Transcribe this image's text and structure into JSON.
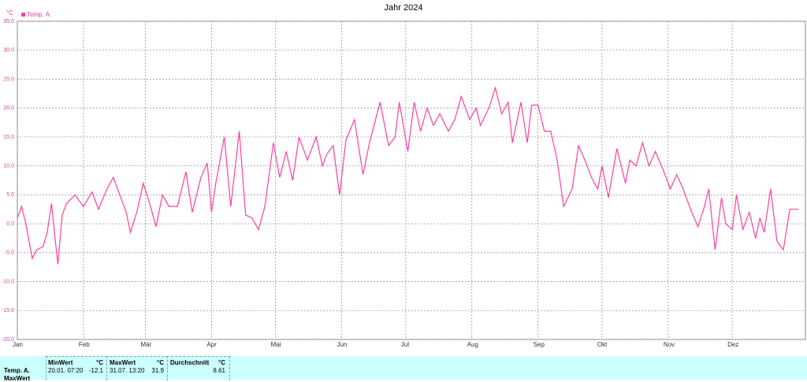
{
  "chart_data": {
    "type": "line",
    "title": "Jahr 2024",
    "y_unit": "°C",
    "x": [
      0,
      2,
      4,
      7,
      9,
      12,
      14,
      16,
      19,
      21,
      23,
      27,
      31,
      35,
      38,
      42,
      45,
      48,
      51,
      53,
      56,
      59,
      62,
      65,
      68,
      71,
      75,
      79,
      82,
      86,
      89,
      91,
      93,
      97,
      100,
      104,
      107,
      110,
      113,
      116,
      120,
      123,
      126,
      129,
      132,
      136,
      140,
      143,
      145,
      148,
      151,
      154,
      158,
      162,
      165,
      170,
      174,
      177,
      179,
      183,
      186,
      189,
      192,
      195,
      198,
      202,
      205,
      208,
      212,
      215,
      217,
      221,
      224,
      227,
      230,
      232,
      236,
      239,
      241,
      244,
      247,
      250,
      253,
      256,
      260,
      263,
      266,
      269,
      272,
      274,
      277,
      281,
      285,
      287,
      290,
      293,
      296,
      299,
      303,
      306,
      309,
      312,
      316,
      319,
      322,
      324,
      327,
      330,
      332,
      335,
      337,
      340,
      343,
      346,
      348,
      350,
      353,
      356,
      359,
      362,
      366
    ],
    "series": [
      {
        "name": "Temp. A.",
        "color": "#ff3fa0",
        "values": [
          1,
          3,
          0,
          -6,
          -4.5,
          -4,
          -1.5,
          3.5,
          -7,
          1.5,
          3.5,
          5,
          3,
          5.5,
          2.5,
          6,
          8,
          5,
          2,
          -1.5,
          2,
          7,
          3.5,
          -0.5,
          5,
          3,
          3,
          9,
          2,
          8,
          10.5,
          2,
          7,
          15,
          3,
          16,
          1.5,
          1,
          -1,
          3,
          14,
          8,
          12.5,
          7.5,
          15,
          11,
          15,
          10,
          12,
          13.5,
          5,
          14.5,
          18,
          8.5,
          14,
          21,
          13.5,
          15,
          21,
          12.5,
          21,
          16,
          20,
          17,
          19,
          16,
          18,
          22,
          18,
          20,
          17,
          20,
          23.5,
          19,
          21,
          14,
          21,
          14,
          20.5,
          20.5,
          16,
          16,
          11,
          3,
          6,
          13.5,
          11,
          8,
          6,
          10,
          4.5,
          13,
          7,
          11,
          10,
          14,
          10,
          12.5,
          9,
          6,
          8.5,
          6,
          2,
          -0.5,
          3,
          6,
          -4.5,
          4.5,
          0,
          -1,
          5,
          -1,
          2,
          -2.5,
          1,
          -1.5,
          6,
          -3,
          -4.5,
          2.5,
          2.5
        ]
      }
    ],
    "xlim": [
      0,
      366
    ],
    "xticks": [
      {
        "value": 0,
        "label": "Jan"
      },
      {
        "value": 31,
        "label": "Feb"
      },
      {
        "value": 60,
        "label": "Mär"
      },
      {
        "value": 91,
        "label": "Apr"
      },
      {
        "value": 121,
        "label": "Mai"
      },
      {
        "value": 152,
        "label": "Jun"
      },
      {
        "value": 182,
        "label": "Jul"
      },
      {
        "value": 213,
        "label": "Aug"
      },
      {
        "value": 244,
        "label": "Sep"
      },
      {
        "value": 274,
        "label": "Okt"
      },
      {
        "value": 305,
        "label": "Nov"
      },
      {
        "value": 335,
        "label": "Dez"
      }
    ],
    "ylim": [
      -20,
      35
    ],
    "yticks": [
      {
        "value": 35,
        "label": "35.0"
      },
      {
        "value": 30,
        "label": "30.0"
      },
      {
        "value": 25,
        "label": "25.0"
      },
      {
        "value": 20,
        "label": "20.0"
      },
      {
        "value": 15,
        "label": "15.0"
      },
      {
        "value": 10,
        "label": "10.0"
      },
      {
        "value": 5,
        "label": "5.0"
      },
      {
        "value": 0,
        "label": "0.0"
      },
      {
        "value": -5,
        "label": "-5.0"
      },
      {
        "value": -10,
        "label": "-10.0"
      },
      {
        "value": -15,
        "label": "-15.0"
      },
      {
        "value": -20,
        "label": "-20.0"
      }
    ],
    "grid": true,
    "legend": "top-left"
  },
  "table": {
    "headers": [
      "MinWert",
      "°C",
      "MaxWert",
      "°C",
      "Durchschnitt",
      "°C"
    ],
    "rows": [
      {
        "label": "Temp. A.",
        "cells": [
          "20.01. 07:20",
          "-12.1",
          "31.07. 13:20",
          "31.9",
          "8.61"
        ]
      },
      {
        "label": "MaxWert"
      }
    ]
  }
}
